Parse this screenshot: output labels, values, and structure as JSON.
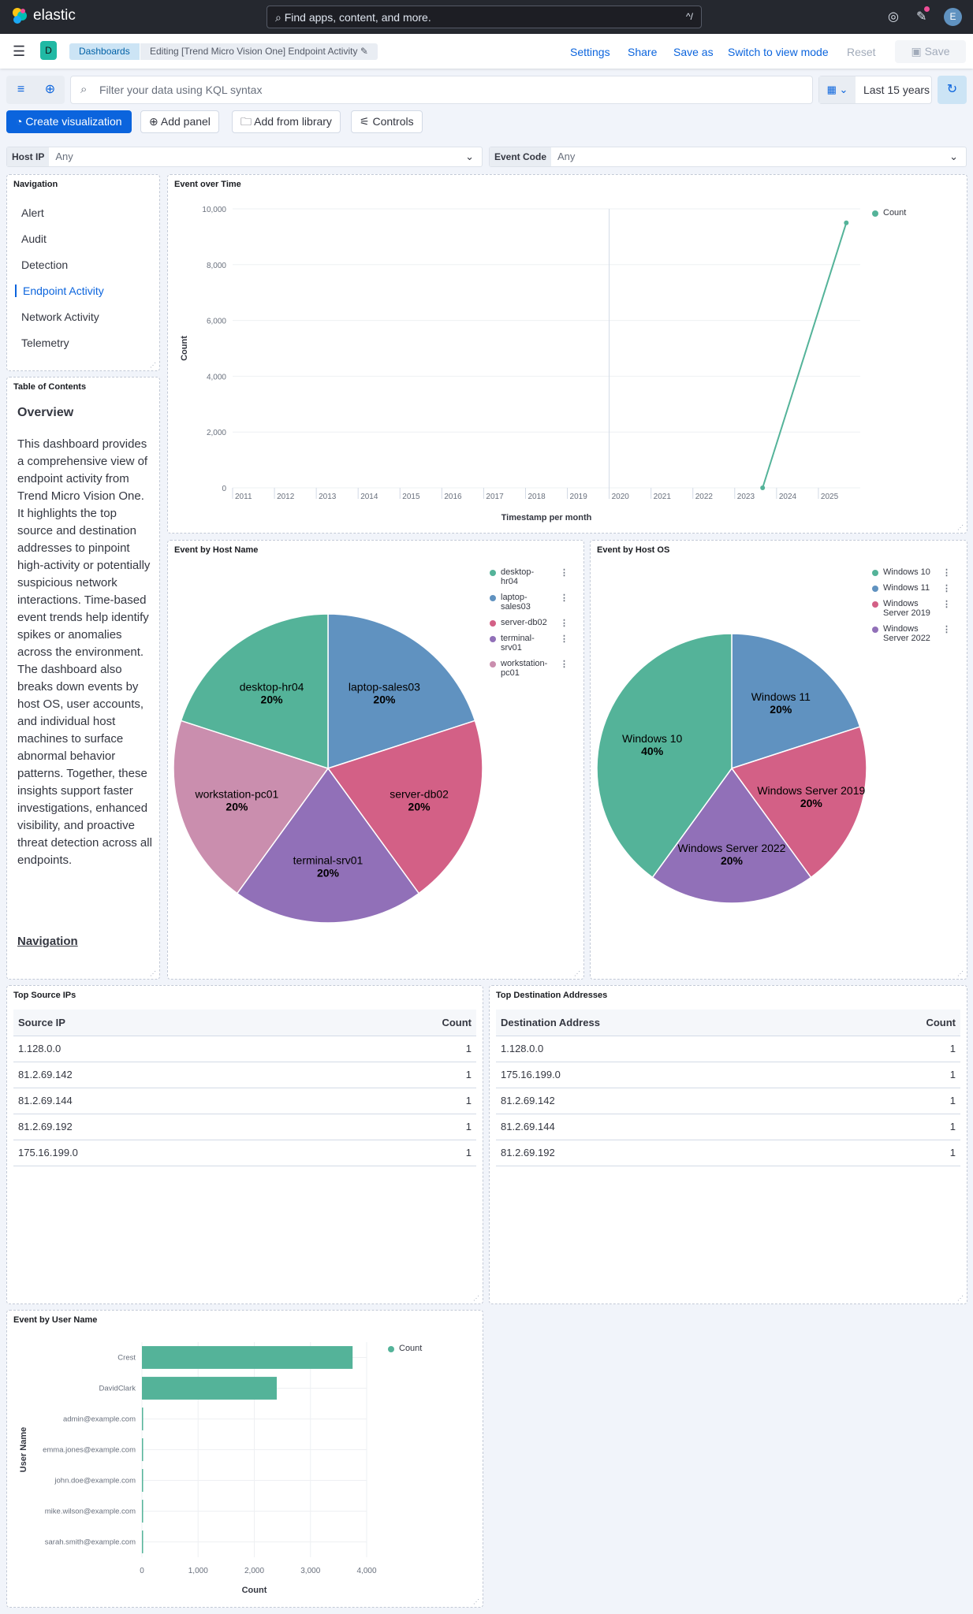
{
  "header": {
    "brand": "elastic",
    "search_placeholder": "Find apps, content, and more.",
    "search_shortcut": "^/",
    "avatar": "E"
  },
  "nav": {
    "space_badge": "D",
    "breadcrumbs": [
      "Dashboards",
      "Editing [Trend Micro Vision One] Endpoint Activity"
    ],
    "links": [
      "Settings",
      "Share",
      "Save as",
      "Switch to view mode",
      "Reset"
    ],
    "save": "Save"
  },
  "query": {
    "placeholder": "Filter your data using KQL syntax",
    "time_range": "Last 15 years"
  },
  "toolbar": {
    "create": "Create visualization",
    "add_panel": "Add panel",
    "add_library": "Add from library",
    "controls": "Controls"
  },
  "controls": [
    {
      "label": "Host IP",
      "value": "Any"
    },
    {
      "label": "Event Code",
      "value": "Any"
    }
  ],
  "navigation": {
    "title": "Navigation",
    "items": [
      "Alert",
      "Audit",
      "Detection",
      "Endpoint Activity",
      "Network Activity",
      "Telemetry"
    ],
    "active": "Endpoint Activity"
  },
  "toc": {
    "title": "Table of Contents",
    "heading": "Overview",
    "body": "This dashboard provides a comprehensive view of endpoint activity from Trend Micro Vision One. It highlights the top source and destination addresses to pinpoint high-activity or potentially suspicious network interactions. Time-based event trends help identify spikes or anomalies across the environment. The dashboard also breaks down events by host OS, user accounts, and individual host machines to surface abnormal behavior patterns. Together, these insights support faster investigations, enhanced visibility, and proactive threat detection across all endpoints.",
    "link": "Navigation"
  },
  "colors": {
    "green": "#54B399",
    "blue": "#6092C0",
    "pink": "#D36086",
    "purple": "#9170B8",
    "lightpink": "#CA8EAE",
    "accent": "#0B64DD"
  },
  "source_table": {
    "title": "Top Source IPs",
    "columns": [
      "Source IP",
      "Count"
    ],
    "rows": [
      [
        "1.128.0.0",
        "1"
      ],
      [
        "81.2.69.142",
        "1"
      ],
      [
        "81.2.69.144",
        "1"
      ],
      [
        "81.2.69.192",
        "1"
      ],
      [
        "175.16.199.0",
        "1"
      ]
    ]
  },
  "dest_table": {
    "title": "Top Destination Addresses",
    "columns": [
      "Destination Address",
      "Count"
    ],
    "rows": [
      [
        "1.128.0.0",
        "1"
      ],
      [
        "175.16.199.0",
        "1"
      ],
      [
        "81.2.69.142",
        "1"
      ],
      [
        "81.2.69.144",
        "1"
      ],
      [
        "81.2.69.192",
        "1"
      ]
    ]
  },
  "chart_data": [
    {
      "type": "line",
      "title": "Event over Time",
      "xlabel": "Timestamp per month",
      "ylabel": "Count",
      "legend": [
        "Count"
      ],
      "legend_position": "top-right",
      "x_ticks": [
        "2011",
        "2012",
        "2013",
        "2014",
        "2015",
        "2016",
        "2017",
        "2018",
        "2019",
        "2020",
        "2021",
        "2022",
        "2023",
        "2024",
        "2025"
      ],
      "xlim": [
        "2011-01",
        "2025-12"
      ],
      "ylim": [
        0,
        10000
      ],
      "y_ticks": [
        "0",
        "2,000",
        "4,000",
        "6,000",
        "8,000",
        "10,000"
      ],
      "grid": true,
      "series": [
        {
          "name": "Count",
          "points": [
            [
              "2023-09",
              0
            ],
            [
              "2025-09",
              9500
            ]
          ]
        }
      ]
    },
    {
      "type": "pie",
      "title": "Event by Host Name",
      "categories": [
        "desktop-hr04",
        "laptop-sales03",
        "server-db02",
        "terminal-srv01",
        "workstation-pc01"
      ],
      "legend": [
        "desktop-\nhr04",
        "laptop-\nsales03",
        "server-db02",
        "terminal-\nsrv01",
        "workstation-\npc01"
      ],
      "values": [
        20,
        20,
        20,
        20,
        20
      ],
      "labels": [
        "20%",
        "20%",
        "20%",
        "20%",
        "20%"
      ],
      "legend_position": "right"
    },
    {
      "type": "pie",
      "title": "Event by Host OS",
      "categories": [
        "Windows 10",
        "Windows 11",
        "Windows Server 2019",
        "Windows Server 2022"
      ],
      "values": [
        40,
        20,
        20,
        20
      ],
      "labels": [
        "40%",
        "20%",
        "20%",
        "20%"
      ],
      "legend_position": "right"
    },
    {
      "type": "bar",
      "orientation": "horizontal",
      "title": "Event by User Name",
      "xlabel": "Count",
      "ylabel": "User Name",
      "legend": [
        "Count"
      ],
      "legend_position": "top-right",
      "categories": [
        "Crest",
        "DavidClark",
        "admin@example.com",
        "emma.jones@example.com",
        "john.doe@example.com",
        "mike.wilson@example.com",
        "sarah.smith@example.com"
      ],
      "values": [
        3750,
        2400,
        5,
        5,
        5,
        5,
        5
      ],
      "xlim": [
        0,
        4000
      ],
      "x_ticks": [
        "0",
        "1,000",
        "2,000",
        "3,000",
        "4,000"
      ],
      "grid": true
    }
  ]
}
